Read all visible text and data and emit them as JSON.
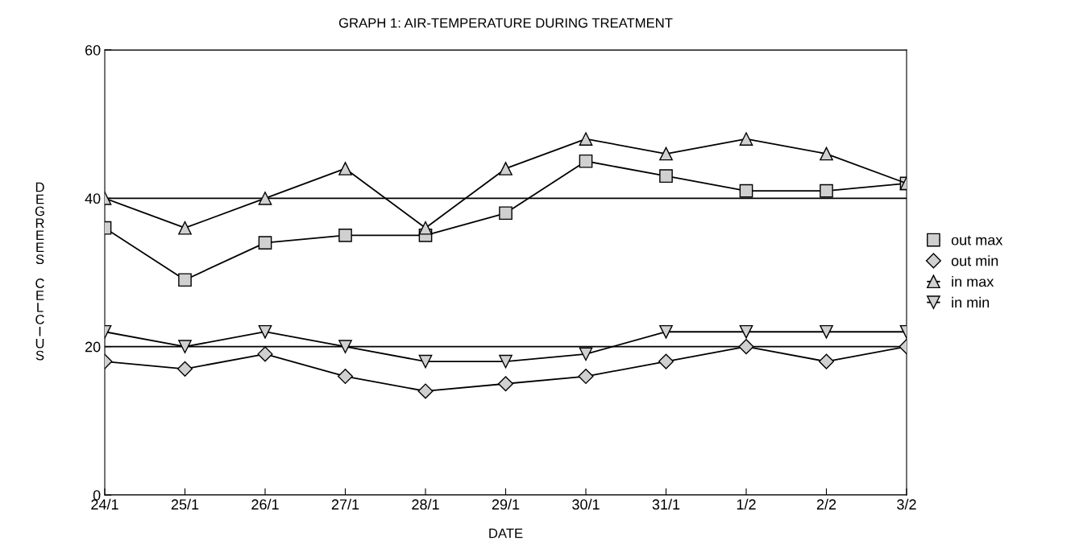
{
  "chart_data": {
    "type": "line",
    "title": "GRAPH 1: AIR-TEMPERATURE DURING TREATMENT",
    "xlabel": "DATE",
    "ylabel": "DEGREES CELCIUS",
    "categories": [
      "24/1",
      "25/1",
      "26/1",
      "27/1",
      "28/1",
      "29/1",
      "30/1",
      "31/1",
      "1/2",
      "2/2",
      "3/2"
    ],
    "series": [
      {
        "name": "out max",
        "color": "#000000",
        "marker": "square",
        "values": [
          36,
          29,
          34,
          35,
          35,
          38,
          45,
          43,
          41,
          41,
          42
        ]
      },
      {
        "name": "out min",
        "color": "#000000",
        "marker": "diamond",
        "values": [
          18,
          17,
          19,
          16,
          14,
          15,
          16,
          18,
          20,
          18,
          20
        ]
      },
      {
        "name": "in max",
        "color": "#000000",
        "marker": "triangle",
        "values": [
          40,
          36,
          40,
          44,
          36,
          44,
          48,
          46,
          48,
          46,
          42
        ]
      },
      {
        "name": "in min",
        "color": "#000000",
        "marker": "triangle_down",
        "values": [
          22,
          20,
          22,
          20,
          18,
          18,
          19,
          22,
          22,
          22,
          22
        ]
      }
    ],
    "ylim": [
      0,
      60
    ],
    "yticks": [
      0,
      20,
      40,
      60
    ],
    "grid": "y",
    "legend": "right",
    "line_style": "solid"
  }
}
